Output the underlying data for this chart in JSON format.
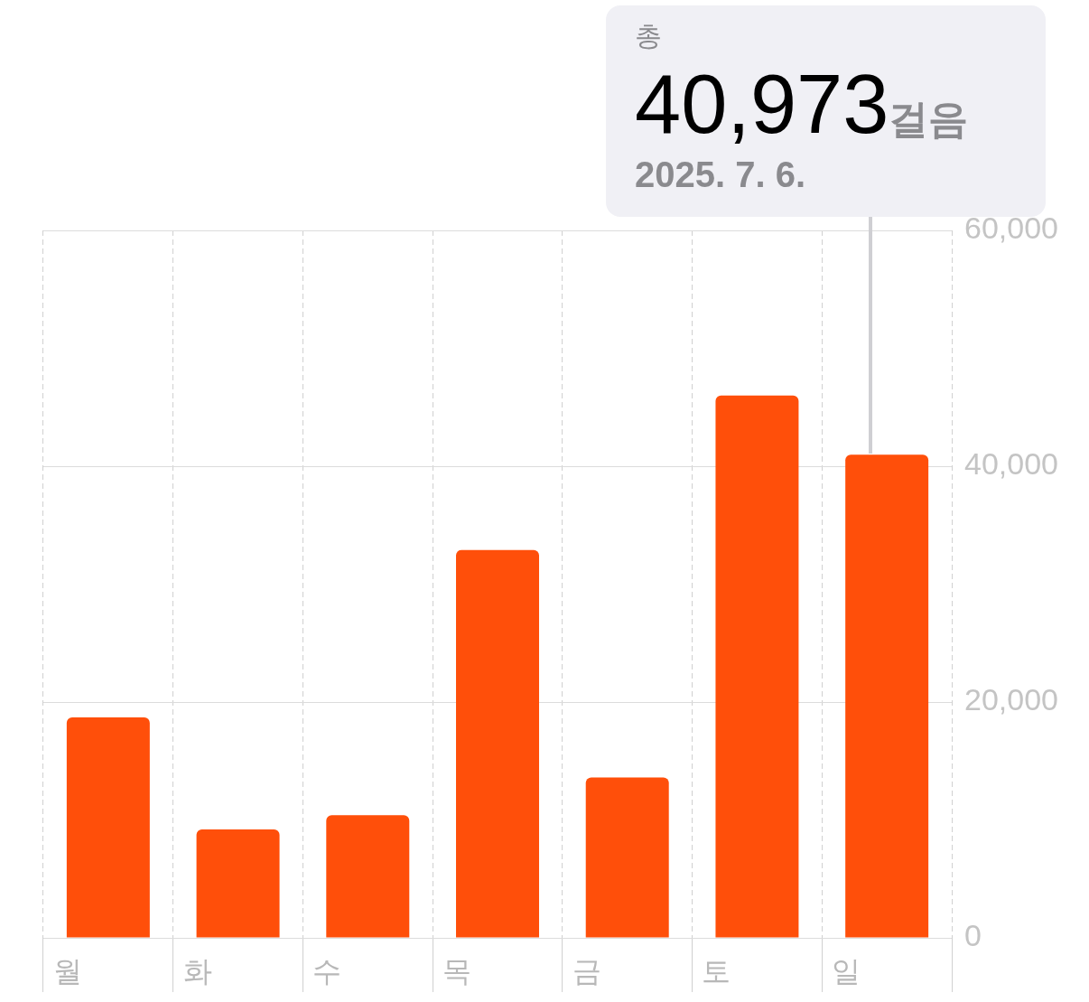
{
  "chart_data": {
    "type": "bar",
    "categories": [
      "월",
      "화",
      "수",
      "목",
      "금",
      "토",
      "일"
    ],
    "values": [
      18700,
      9200,
      10400,
      32900,
      13600,
      46000,
      40973
    ],
    "color": "#ff4f0a",
    "ylim": [
      0,
      60000
    ],
    "yticks": [
      {
        "value": 0,
        "label": "0"
      },
      {
        "value": 20000,
        "label": "20,000"
      },
      {
        "value": 40000,
        "label": "40,000"
      },
      {
        "value": 60000,
        "label": "60,000"
      }
    ],
    "grid": true,
    "annotations": [
      "총",
      "40,973",
      "걸음",
      "2025. 7. 6."
    ]
  }
}
